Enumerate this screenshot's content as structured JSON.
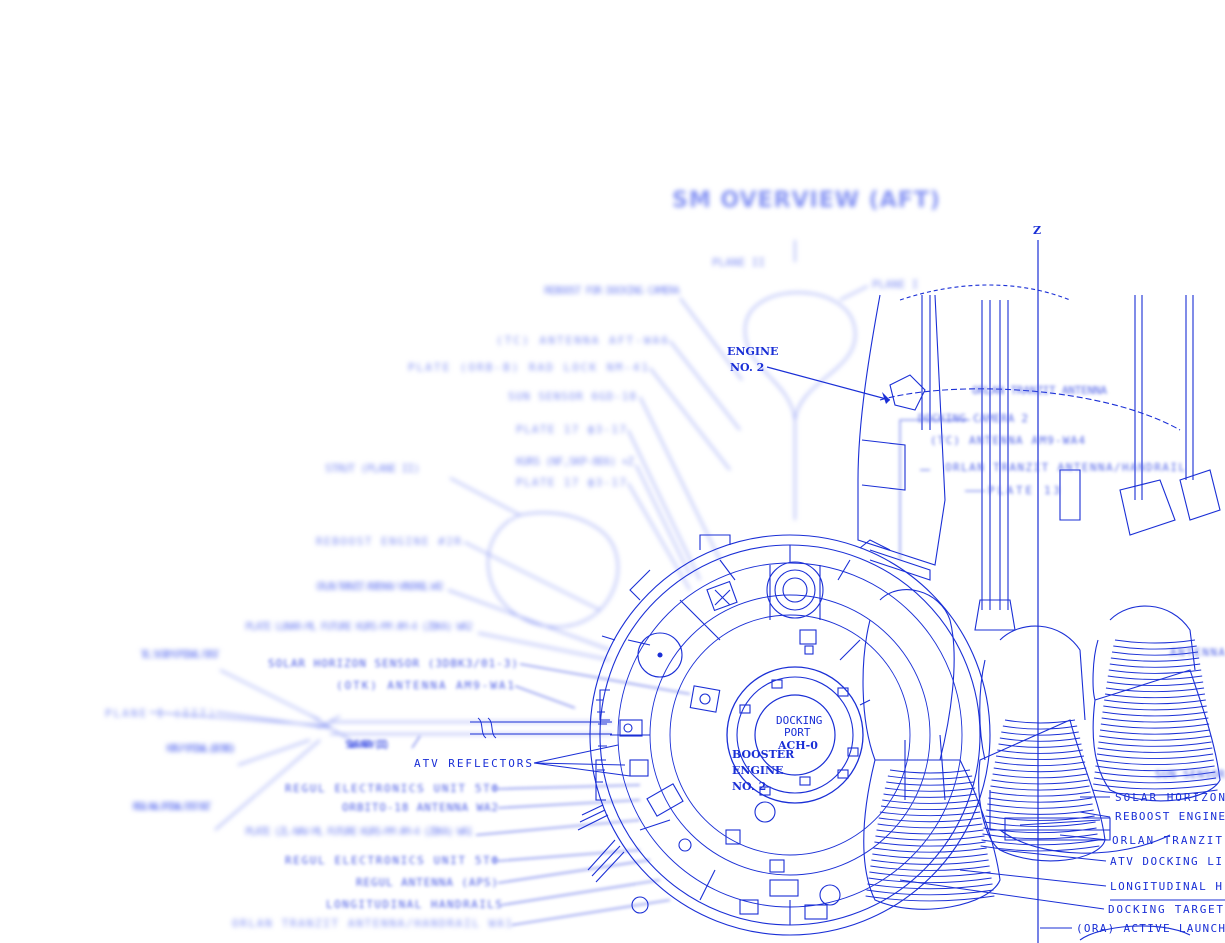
{
  "diagram": {
    "title": "SM OVERVIEW (AFT)",
    "axis_z": "Z",
    "palette": {
      "ink": "#1a2fd6",
      "ink_faded": "#7d8cf2",
      "background": "#ffffff"
    },
    "labels": {
      "plane_2": "PLANE II",
      "plane_1": "PLANE I",
      "reboost_camera": "REBOOST FOR DOCKING CAMERA",
      "antenna_aft": "(TC) ANTENNA AFT-WA6",
      "plate_rad": "PLATE (ORB-B) RAD LOCK NM-41",
      "sun_sensor": "SUN SENSOR 6GD-18",
      "plate_17_1": "PLATE 17 фЗ-17",
      "kurs": "KURS (NF,SKP-8E6) +Z",
      "plate_17_2": "PLATE 17 фЗ-17",
      "strut_left": "STRUT (PLANE II)",
      "reboost_engine_left": "REBOOST ENGINE #2R",
      "orlan_antenna_2": "ORLAN TRANZIT ANTENNA/ HANDRAIL WA2",
      "plate_lunar": "PLATE LUNAR-ML FUTURE KURS-MM AM-4 (ZBKA) WA2",
      "solar_horizon_sensor": "SOLAR HORIZON SENSOR (3DBK3/01-3)",
      "antenna_am9": "(OTK) ANTENNA AM9-WA1",
      "tel_system": "TEL SYSTEM OPTIONAL FIRST",
      "plane_3": "PLANE I (III)",
      "kurs_optional": "KURS-P OPTIONAL (DEFINED)",
      "regul_optional": "REGUL ANAL OPTIONAL FIRST UNIT",
      "solar_array": "SOLAR ARRAY (III)",
      "atv_reflectors": "ATV REFLECTORS",
      "regul_unit_1": "REGUL ELECTRONICS UNIT 5ТФ",
      "antenna_wa2": "ORBITO-18 ANTENNA WA2",
      "plate_wa1": "PLATE (ZL-NAV-ML FUTURE KURS-MM AM-4 (ZBKA) WA1",
      "regul_unit_2": "REGUL ELECTRONICS UNIT 5ТФ",
      "regul_antenna": "REGUL ANTENNA (APS)",
      "longitudinal_handrails": "LONGITUDINAL HANDRAILS",
      "orlan_wa1": "ORLAN TRANZIT ANTENNA/HANDRAIL WA1",
      "engine_no2_top_a": "ENGINE",
      "engine_no2_top_b": "NO. 2",
      "booster_a": "BOOSTER",
      "booster_b": "ENGINE",
      "booster_c": "NO. 2",
      "docking_a": "DOCKING",
      "docking_b": "PORT",
      "docking_c": "ACH-0",
      "r_orlan_antenna": "ORLAN TRANZIT ANTENNA",
      "r_plate_13": "PLATE 13",
      "r_camera_2": "DOCKING CAMERA 2",
      "r_tc_antenna": "(TC) ANTENNA AM9-WA4",
      "r_orlan_transit": "ORLAN TRANZIT ANTENNA/HANDRAIL",
      "r_antenna_side": "ANTENNA",
      "r_sun_sensor": "SUN SENSOR",
      "r_solar_horizon": "SOLAR HORIZON",
      "r_reboost_engine": "REBOOST ENGINE",
      "r_orlan_tranzit": "ORLAN TRANZIT",
      "r_atv_docking": "ATV DOCKING LI",
      "r_longitudinal": "LONGITUDINAL H",
      "r_docking_target": "DOCKING TARGET",
      "r_active_launch": "(ORA) ACTIVE LAUNCH"
    }
  }
}
